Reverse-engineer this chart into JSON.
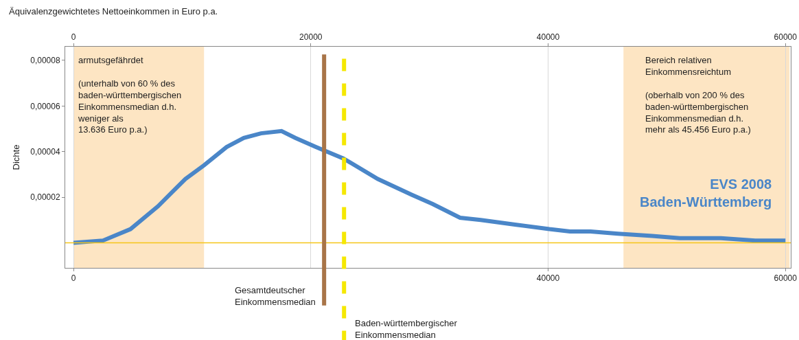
{
  "chart_data": {
    "type": "line",
    "x2label": "Äquivalenzgewichtetes Nettoeinkommen in Euro p.a.",
    "ylabel": "Dichte",
    "x": [
      0,
      2490,
      4800,
      7120,
      9430,
      11000,
      12900,
      14350,
      15800,
      17530,
      18690,
      20430,
      22740,
      25640,
      28530,
      30270,
      32580,
      34320,
      37210,
      40100,
      41840,
      43580,
      45890,
      48780,
      51100,
      54570,
      57460,
      60000
    ],
    "series": [
      {
        "color": "#4a86c8",
        "values": [
          0,
          1e-06,
          6e-06,
          1.6e-05,
          2.8e-05,
          3.4e-05,
          4.2e-05,
          4.6e-05,
          4.8e-05,
          4.9e-05,
          4.6e-05,
          4.2e-05,
          3.7e-05,
          2.8e-05,
          2.1e-05,
          1.7e-05,
          1.1e-05,
          1e-05,
          8e-06,
          6e-06,
          5e-06,
          5e-06,
          4e-06,
          3e-06,
          2e-06,
          2e-06,
          1e-06,
          1e-06
        ]
      }
    ],
    "xlim": [
      -700,
      60450
    ],
    "xticks": [
      0,
      40000,
      60000
    ],
    "x2lim": [
      -700,
      60450
    ],
    "x2ticks": [
      0,
      20000,
      40000,
      60000
    ],
    "ylim": [
      -1.1e-05,
      8.6e-05
    ],
    "yticks": [
      {
        "value": 2e-05,
        "label": "0,00002"
      },
      {
        "value": 4e-05,
        "label": "0,00004"
      },
      {
        "value": 6e-05,
        "label": "0,00006"
      },
      {
        "value": 8e-05,
        "label": "0,00008"
      }
    ],
    "grid": "x",
    "marker": "none",
    "line_style": "solid",
    "bands": [
      {
        "axis": "x",
        "from": 0,
        "to": 11000,
        "color": "#fde5c3",
        "label": "armutsgefährdet\n\n(unterhalb von 60 % des\nbaden-württembergischen\nEinkommensmedian d.h.\nweniger als\n13.636 Euro p.a.)"
      },
      {
        "axis": "x",
        "from": 46350,
        "to": 60350,
        "color": "#fde5c3",
        "label": "Bereich relativen\nEinkommensreichtum\n\n(oberhalb von 200 % des\nbaden-württembergischen\nEinkommensmedian d.h.\nmehr als 45.456 Euro p.a.)"
      }
    ],
    "ref_lines": [
      {
        "axis": "y",
        "value": 0,
        "color": "#f5c518",
        "line_style": "solid"
      },
      {
        "axis": "x",
        "value": 21120,
        "color": "#a87448",
        "line_style": "solid",
        "label": "Gesamtdeutscher\nEinkommensmedian"
      },
      {
        "axis": "x",
        "value": 22800,
        "color": "#f5e800",
        "line_style": "dashed",
        "label": "Baden-württembergischer\nEinkommensmedian"
      }
    ],
    "annotations": [
      "EVS 2008\nBaden-Württemberg"
    ]
  }
}
